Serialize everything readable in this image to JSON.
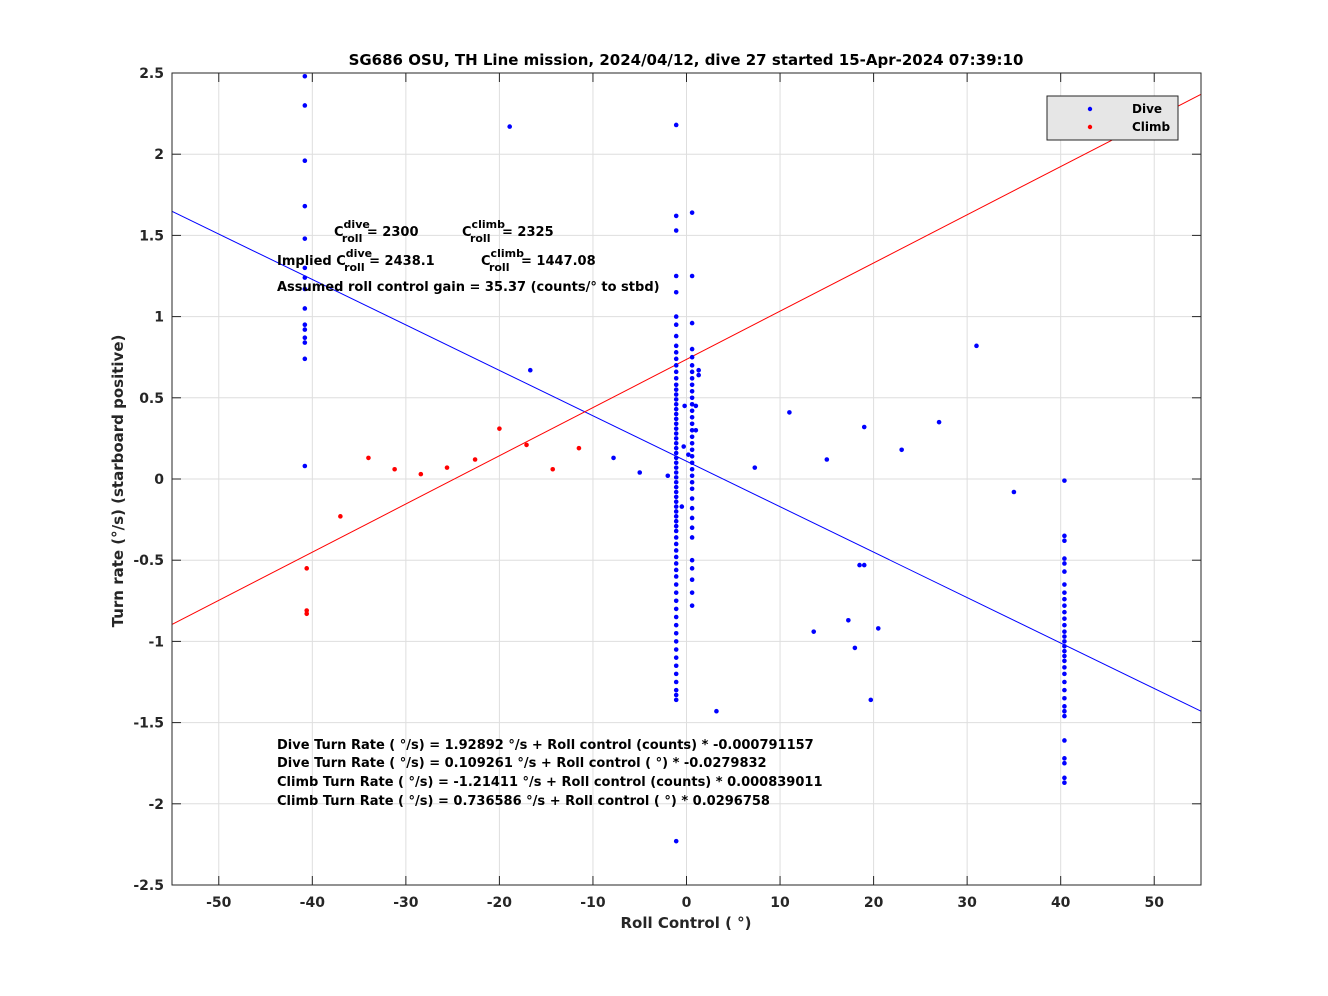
{
  "chart_data": {
    "type": "scatter",
    "title": "SG686 OSU, TH Line mission, 2024/04/12, dive 27 started 15-Apr-2024 07:39:10",
    "xlabel": "Roll Control ( °)",
    "ylabel": "Turn rate (°/s) (starboard positive)",
    "xlim": [
      -55,
      55
    ],
    "ylim": [
      -2.5,
      2.5
    ],
    "xticks": [
      -50,
      -40,
      -30,
      -20,
      -10,
      0,
      10,
      20,
      30,
      40,
      50
    ],
    "xtick_labels": [
      "-50",
      "-40",
      "-30",
      "-20",
      "-10",
      "0",
      "10",
      "20",
      "30",
      "40",
      "50"
    ],
    "yticks": [
      -2.5,
      -2,
      -1.5,
      -1,
      -0.5,
      0,
      0.5,
      1,
      1.5,
      2,
      2.5
    ],
    "ytick_labels": [
      "-2.5",
      "-2",
      "-1.5",
      "-1",
      "-0.5",
      "0",
      "0.5",
      "1",
      "1.5",
      "2",
      "2.5"
    ],
    "grid": true,
    "legend_position": "top-right",
    "series": [
      {
        "name": "Dive",
        "color": "#0000ff",
        "points": [
          [
            -40.8,
            2.48
          ],
          [
            -40.8,
            2.3
          ],
          [
            -40.8,
            1.96
          ],
          [
            -40.8,
            1.68
          ],
          [
            -40.8,
            1.48
          ],
          [
            -40.8,
            1.3
          ],
          [
            -40.8,
            1.24
          ],
          [
            -40.8,
            1.17
          ],
          [
            -40.8,
            1.05
          ],
          [
            -40.8,
            0.95
          ],
          [
            -40.8,
            0.92
          ],
          [
            -40.8,
            0.87
          ],
          [
            -40.8,
            0.84
          ],
          [
            -40.8,
            0.74
          ],
          [
            -40.8,
            0.08
          ],
          [
            -18.9,
            2.17
          ],
          [
            -16.7,
            0.67
          ],
          [
            -7.8,
            0.13
          ],
          [
            -5.0,
            0.04
          ],
          [
            -2.0,
            0.02
          ],
          [
            -1.1,
            2.18
          ],
          [
            -1.1,
            1.62
          ],
          [
            -1.1,
            1.53
          ],
          [
            -1.1,
            1.25
          ],
          [
            -1.1,
            1.15
          ],
          [
            -1.1,
            1.0
          ],
          [
            -1.1,
            0.95
          ],
          [
            -1.1,
            0.88
          ],
          [
            -1.1,
            0.82
          ],
          [
            -1.1,
            0.78
          ],
          [
            -1.1,
            0.74
          ],
          [
            -1.1,
            0.7
          ],
          [
            -1.1,
            0.66
          ],
          [
            -1.1,
            0.62
          ],
          [
            -1.1,
            0.58
          ],
          [
            -1.1,
            0.55
          ],
          [
            -1.1,
            0.52
          ],
          [
            -1.1,
            0.49
          ],
          [
            -1.1,
            0.46
          ],
          [
            -1.1,
            0.43
          ],
          [
            -1.1,
            0.4
          ],
          [
            -1.1,
            0.37
          ],
          [
            -1.1,
            0.34
          ],
          [
            -1.1,
            0.31
          ],
          [
            -1.1,
            0.28
          ],
          [
            -1.1,
            0.25
          ],
          [
            -1.1,
            0.22
          ],
          [
            -1.1,
            0.19
          ],
          [
            -1.1,
            0.16
          ],
          [
            -1.1,
            0.13
          ],
          [
            -1.1,
            0.1
          ],
          [
            -1.1,
            0.07
          ],
          [
            -1.1,
            0.04
          ],
          [
            -1.1,
            0.01
          ],
          [
            -1.1,
            -0.02
          ],
          [
            -1.1,
            -0.05
          ],
          [
            -1.1,
            -0.08
          ],
          [
            -1.1,
            -0.11
          ],
          [
            -1.1,
            -0.14
          ],
          [
            -1.1,
            -0.17
          ],
          [
            -1.1,
            -0.2
          ],
          [
            -1.1,
            -0.23
          ],
          [
            -1.1,
            -0.26
          ],
          [
            -1.1,
            -0.29
          ],
          [
            -1.1,
            -0.32
          ],
          [
            -1.1,
            -0.36
          ],
          [
            -1.1,
            -0.4
          ],
          [
            -1.1,
            -0.44
          ],
          [
            -1.1,
            -0.48
          ],
          [
            -1.1,
            -0.52
          ],
          [
            -1.1,
            -0.56
          ],
          [
            -1.1,
            -0.6
          ],
          [
            -1.1,
            -0.65
          ],
          [
            -1.1,
            -0.7
          ],
          [
            -1.1,
            -0.75
          ],
          [
            -1.1,
            -0.8
          ],
          [
            -1.1,
            -0.85
          ],
          [
            -1.1,
            -0.9
          ],
          [
            -1.1,
            -0.95
          ],
          [
            -1.1,
            -1.0
          ],
          [
            -1.1,
            -1.05
          ],
          [
            -1.1,
            -1.1
          ],
          [
            -1.1,
            -1.15
          ],
          [
            -1.1,
            -1.2
          ],
          [
            -1.1,
            -1.25
          ],
          [
            -1.1,
            -1.3
          ],
          [
            -1.1,
            -1.33
          ],
          [
            -1.1,
            -1.36
          ],
          [
            -1.1,
            -2.23
          ],
          [
            0.6,
            1.64
          ],
          [
            0.6,
            1.25
          ],
          [
            0.6,
            0.96
          ],
          [
            0.6,
            0.8
          ],
          [
            0.6,
            0.75
          ],
          [
            0.6,
            0.7
          ],
          [
            0.6,
            0.66
          ],
          [
            0.6,
            0.62
          ],
          [
            0.6,
            0.58
          ],
          [
            0.6,
            0.54
          ],
          [
            0.6,
            0.5
          ],
          [
            0.6,
            0.46
          ],
          [
            0.6,
            0.42
          ],
          [
            0.6,
            0.38
          ],
          [
            0.6,
            0.34
          ],
          [
            0.6,
            0.3
          ],
          [
            0.6,
            0.26
          ],
          [
            0.6,
            0.22
          ],
          [
            0.6,
            0.18
          ],
          [
            0.6,
            0.14
          ],
          [
            0.6,
            0.1
          ],
          [
            0.6,
            0.06
          ],
          [
            0.6,
            0.02
          ],
          [
            0.6,
            -0.02
          ],
          [
            0.6,
            -0.06
          ],
          [
            0.6,
            -0.12
          ],
          [
            0.6,
            -0.18
          ],
          [
            0.6,
            -0.24
          ],
          [
            0.6,
            -0.3
          ],
          [
            0.6,
            -0.36
          ],
          [
            0.6,
            -0.5
          ],
          [
            0.6,
            -0.55
          ],
          [
            0.6,
            -0.62
          ],
          [
            0.6,
            -0.7
          ],
          [
            0.6,
            -0.78
          ],
          [
            1.0,
            0.45
          ],
          [
            1.0,
            0.3
          ],
          [
            1.3,
            0.67
          ],
          [
            1.3,
            0.64
          ],
          [
            -0.2,
            0.45
          ],
          [
            -0.3,
            0.2
          ],
          [
            -0.5,
            -0.17
          ],
          [
            0.2,
            0.15
          ],
          [
            3.2,
            -1.43
          ],
          [
            7.3,
            0.07
          ],
          [
            11.0,
            0.41
          ],
          [
            13.6,
            -0.94
          ],
          [
            15.0,
            0.12
          ],
          [
            17.3,
            -0.87
          ],
          [
            18.0,
            -1.04
          ],
          [
            18.5,
            -0.53
          ],
          [
            19.0,
            -0.53
          ],
          [
            19.0,
            0.32
          ],
          [
            19.7,
            -1.36
          ],
          [
            20.5,
            -0.92
          ],
          [
            23.0,
            0.18
          ],
          [
            27.0,
            0.35
          ],
          [
            31.0,
            0.82
          ],
          [
            35.0,
            -0.08
          ],
          [
            40.4,
            -0.01
          ],
          [
            40.4,
            -0.35
          ],
          [
            40.4,
            -0.38
          ],
          [
            40.4,
            -0.49
          ],
          [
            40.4,
            -0.52
          ],
          [
            40.4,
            -0.57
          ],
          [
            40.4,
            -0.65
          ],
          [
            40.4,
            -0.7
          ],
          [
            40.4,
            -0.74
          ],
          [
            40.4,
            -0.78
          ],
          [
            40.4,
            -0.82
          ],
          [
            40.4,
            -0.86
          ],
          [
            40.4,
            -0.9
          ],
          [
            40.4,
            -0.94
          ],
          [
            40.4,
            -0.97
          ],
          [
            40.4,
            -1.0
          ],
          [
            40.4,
            -1.03
          ],
          [
            40.4,
            -1.06
          ],
          [
            40.4,
            -1.09
          ],
          [
            40.4,
            -1.12
          ],
          [
            40.4,
            -1.16
          ],
          [
            40.4,
            -1.2
          ],
          [
            40.4,
            -1.25
          ],
          [
            40.4,
            -1.3
          ],
          [
            40.4,
            -1.35
          ],
          [
            40.4,
            -1.4
          ],
          [
            40.4,
            -1.43
          ],
          [
            40.4,
            -1.46
          ],
          [
            40.4,
            -1.61
          ],
          [
            40.4,
            -1.72
          ],
          [
            40.4,
            -1.75
          ],
          [
            40.4,
            -1.84
          ],
          [
            40.4,
            -1.87
          ]
        ]
      },
      {
        "name": "Climb",
        "color": "#ff0000",
        "points": [
          [
            -40.6,
            -0.55
          ],
          [
            -40.6,
            -0.81
          ],
          [
            -40.6,
            -0.83
          ],
          [
            -37.0,
            -0.23
          ],
          [
            -34.0,
            0.13
          ],
          [
            -31.2,
            0.06
          ],
          [
            -28.4,
            0.03
          ],
          [
            -25.6,
            0.07
          ],
          [
            -22.6,
            0.12
          ],
          [
            -20.0,
            0.31
          ],
          [
            -17.1,
            0.21
          ],
          [
            -14.3,
            0.06
          ],
          [
            -11.5,
            0.19
          ]
        ]
      }
    ],
    "fit_lines": [
      {
        "series": "Dive",
        "color": "#0000ff",
        "intercept": 0.109261,
        "slope": -0.0279832
      },
      {
        "series": "Climb",
        "color": "#ff0000",
        "intercept": 0.736586,
        "slope": 0.0296758
      }
    ],
    "annotations": {
      "c_dive_label": "C",
      "c_dive_sup": "dive",
      "c_dive_sub": "roll",
      "c_dive_value": " = 2300",
      "c_climb_label": "C",
      "c_climb_sup": "climb",
      "c_climb_sub": "roll",
      "c_climb_value": " = 2325",
      "implied_prefix": "Implied C",
      "implied_dive_sup": "dive",
      "implied_dive_sub": "roll",
      "implied_dive_value": " = 2438.1",
      "implied_climb_label": "C",
      "implied_climb_sup": "climb",
      "implied_climb_sub": "roll",
      "implied_climb_value": " = 1447.08",
      "gain": "Assumed roll control gain = 35.37 (counts/° to stbd)",
      "eq1": "Dive Turn Rate ( °/s) = 1.92892  °/s + Roll control (counts) * -0.000791157",
      "eq2": "Dive Turn Rate ( °/s) = 0.109261  °/s + Roll control ( °) * -0.0279832",
      "eq3": "Climb Turn Rate ( °/s) = -1.21411  °/s + Roll control (counts) * 0.000839011",
      "eq4": "Climb Turn Rate ( °/s) = 0.736586  °/s + Roll control ( °) * 0.0296758"
    }
  }
}
